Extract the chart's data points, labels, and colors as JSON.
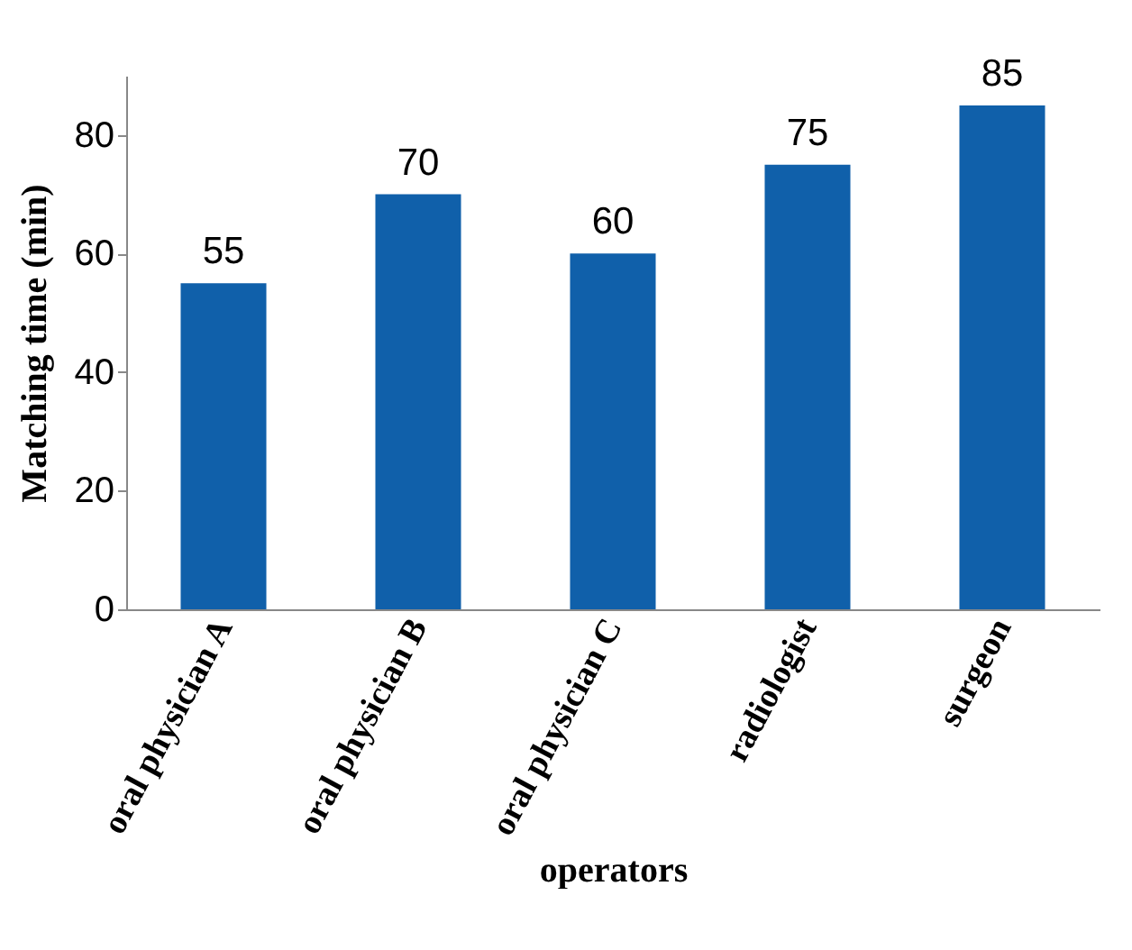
{
  "chart_data": {
    "type": "bar",
    "xlabel": "operators",
    "ylabel": "Matching  time (min)",
    "categories": [
      "oral physician  A",
      "oral physician  B",
      "oral physician C",
      "radiologist",
      "surgeon"
    ],
    "values": [
      55,
      70,
      60,
      75,
      85
    ],
    "color": "#1060aa",
    "ylim": [
      0,
      90
    ],
    "yticks": [
      0,
      20,
      40,
      60,
      80
    ],
    "grid": false,
    "data_labels": true
  }
}
